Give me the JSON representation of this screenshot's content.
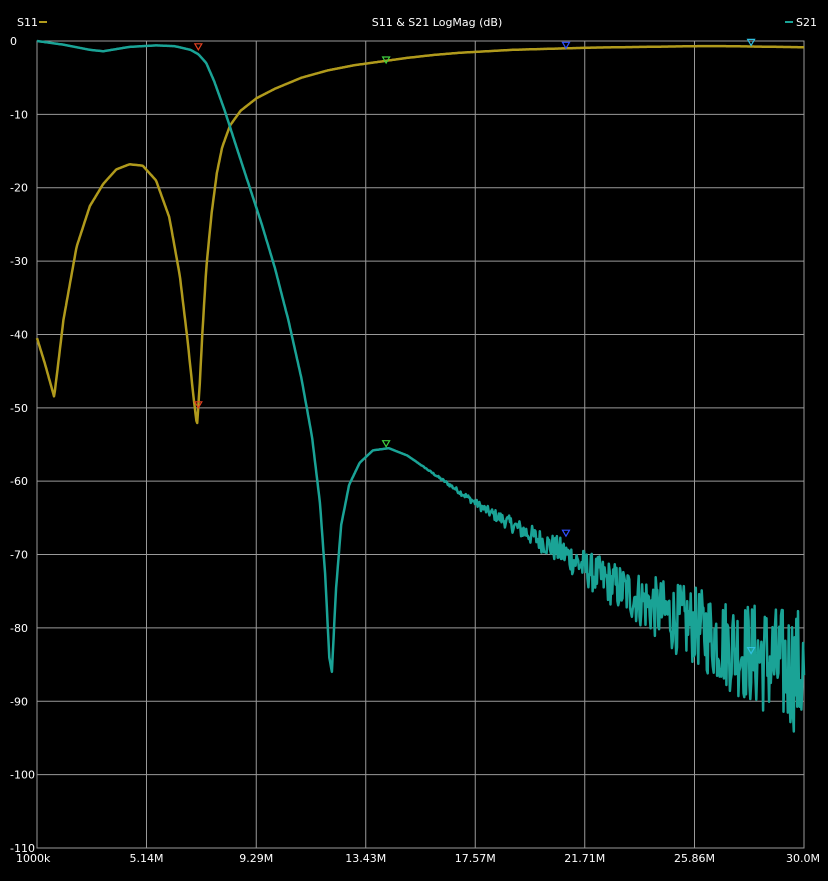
{
  "chart_data": {
    "type": "line",
    "title": "S11 & S21 LogMag (dB)",
    "xlabel": "",
    "ylabel": "",
    "x_unit": "Hz",
    "xlim": [
      1000000,
      30000000
    ],
    "ylim": [
      -110,
      0
    ],
    "grid": true,
    "legend_placement": "top",
    "x_tick_values": [
      1000000,
      5140000,
      9290000,
      13430000,
      17570000,
      21710000,
      25860000,
      30000000
    ],
    "x_tick_labels": [
      "1000k",
      "5.14M",
      "9.29M",
      "13.43M",
      "17.57M",
      "21.71M",
      "25.86M",
      "30.0M"
    ],
    "y_ticks": [
      0,
      -10,
      -20,
      -30,
      -40,
      -50,
      -60,
      -70,
      -80,
      -90,
      -100,
      -110
    ],
    "series": [
      {
        "name": "S11",
        "color": "#b09a1c",
        "noise": 0,
        "x": [
          1000000,
          1300000,
          1650000,
          2000000,
          2500000,
          3000000,
          3500000,
          4000000,
          4500000,
          5000000,
          5500000,
          6000000,
          6400000,
          6700000,
          6900000,
          7050000,
          7150000,
          7250000,
          7400000,
          7600000,
          7800000,
          8000000,
          8300000,
          8700000,
          9300000,
          10000000,
          11000000,
          12000000,
          13000000,
          14000000,
          15000000,
          16000000,
          17000000,
          18000000,
          19000000,
          20000000,
          21000000,
          22000000,
          23000000,
          24000000,
          25000000,
          26000000,
          27000000,
          28000000,
          29000000,
          30000000
        ],
        "y": [
          -40.5,
          -44,
          -48.5,
          -38,
          -28,
          -22.5,
          -19.5,
          -17.5,
          -16.8,
          -17,
          -19,
          -24,
          -32,
          -41,
          -48,
          -52.5,
          -47,
          -40,
          -31,
          -23.5,
          -18,
          -14.5,
          -11.5,
          -9.5,
          -7.8,
          -6.5,
          -5,
          -4,
          -3.3,
          -2.8,
          -2.3,
          -1.9,
          -1.6,
          -1.4,
          -1.2,
          -1.1,
          -1,
          -0.9,
          -0.85,
          -0.8,
          -0.75,
          -0.7,
          -0.7,
          -0.75,
          -0.8,
          -0.85
        ]
      },
      {
        "name": "S21",
        "color": "#1aa396",
        "noise": 1,
        "x": [
          1000000,
          2000000,
          3000000,
          3500000,
          4500000,
          5500000,
          6200000,
          6800000,
          7100000,
          7400000,
          7700000,
          8100000,
          8500000,
          9000000,
          9500000,
          10000000,
          10500000,
          11000000,
          11400000,
          11700000,
          11900000,
          12050000,
          12150000,
          12300000,
          12500000,
          12800000,
          13200000,
          13700000,
          14300000,
          15000000,
          16000000,
          17000000,
          18000000,
          19000000,
          20000000,
          21000000,
          22000000,
          23000000,
          24000000,
          25000000,
          26000000,
          27000000,
          28000000,
          29000000,
          30000000
        ],
        "y": [
          0,
          -0.5,
          -1.2,
          -1.4,
          -0.8,
          -0.6,
          -0.7,
          -1.2,
          -1.8,
          -3,
          -5.5,
          -9.5,
          -14,
          -19.5,
          -25,
          -31,
          -38,
          -46,
          -54,
          -63,
          -73,
          -84,
          -86,
          -75,
          -66,
          -60.5,
          -57.5,
          -55.8,
          -55.5,
          -56.5,
          -59,
          -61.5,
          -64,
          -66,
          -68,
          -70,
          -72.5,
          -74.5,
          -76.5,
          -78.5,
          -80,
          -82,
          -83.5,
          -85,
          -86
        ]
      }
    ],
    "markers": [
      {
        "series": "S11",
        "x": 7100000,
        "y": -50,
        "color": "#e04020"
      },
      {
        "series": "S21",
        "x": 7100000,
        "y": -1.2,
        "color": "#e04020"
      },
      {
        "series": "S11",
        "x": 14200000,
        "y": -3,
        "color": "#40d040"
      },
      {
        "series": "S21",
        "x": 14200000,
        "y": -55.3,
        "color": "#40d040"
      },
      {
        "series": "S11",
        "x": 21000000,
        "y": -1,
        "color": "#3050ff"
      },
      {
        "series": "S21",
        "x": 21000000,
        "y": -67.5,
        "color": "#3050ff"
      },
      {
        "series": "S11",
        "x": 28000000,
        "y": -0.6,
        "color": "#30c0e0"
      },
      {
        "series": "S21",
        "x": 28000000,
        "y": -83.5,
        "color": "#30c0e0"
      }
    ]
  }
}
